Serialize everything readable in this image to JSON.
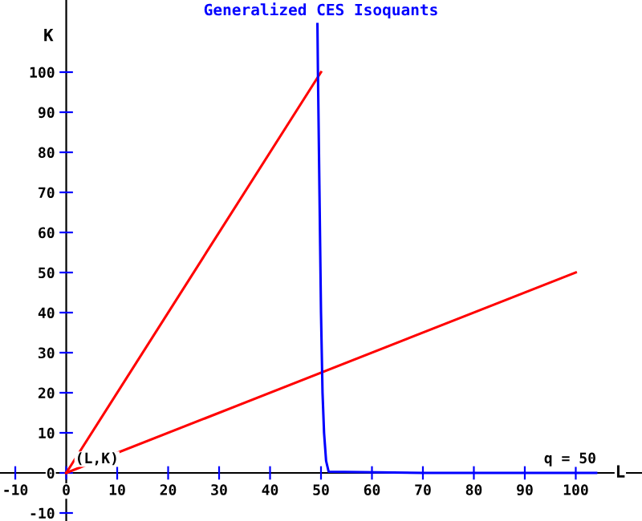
{
  "chart_data": {
    "type": "line",
    "title": "Generalized CES Isoquants",
    "xlabel": "L",
    "ylabel": "K",
    "series": [
      {
        "color": "#ff0000",
        "x": [
          0,
          50
        ],
        "values": [
          0,
          100
        ]
      },
      {
        "color": "#ff0000",
        "x": [
          0,
          100
        ],
        "values": [
          0,
          50
        ]
      },
      {
        "color": "#0000ff",
        "x": [
          49.3,
          49.4,
          49.7,
          50,
          50.3,
          50.6,
          51,
          51.5,
          70,
          100,
          104
        ],
        "values": [
          112,
          100,
          70,
          40,
          20,
          10,
          3,
          0.3,
          0,
          0,
          0
        ]
      }
    ],
    "annotations": [
      {
        "text": "(L,K)",
        "x": 0,
        "y": 0
      },
      {
        "text": "q = 50",
        "x": 92,
        "y": 0
      }
    ],
    "xlim": [
      -13,
      113
    ],
    "ylim": [
      -12,
      118
    ],
    "xticks": [
      -10,
      0,
      10,
      20,
      30,
      40,
      50,
      60,
      70,
      80,
      90,
      100
    ],
    "yticks": [
      -10,
      0,
      10,
      20,
      30,
      40,
      50,
      60,
      70,
      80,
      90,
      100
    ],
    "grid": false,
    "legend": false,
    "line_style": "solid"
  }
}
